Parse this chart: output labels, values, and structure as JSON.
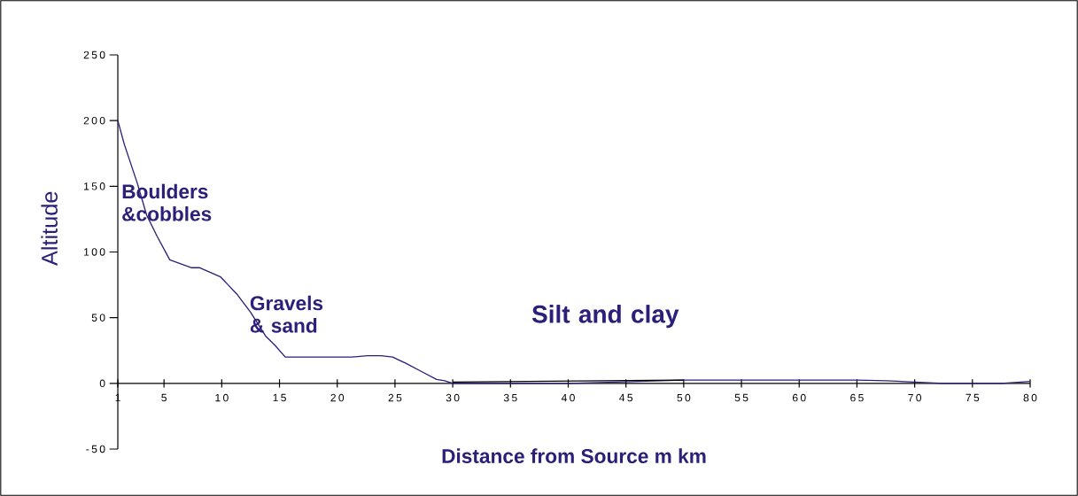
{
  "chart_data": {
    "type": "line",
    "xlabel": "Distance from Source m km",
    "ylabel": "Altitude",
    "xlim": [
      1,
      80
    ],
    "xticks": [
      1,
      5,
      10,
      15,
      20,
      25,
      30,
      35,
      40,
      45,
      50,
      55,
      60,
      65,
      70,
      75,
      80
    ],
    "ylim": [
      -50,
      250
    ],
    "yticks": [
      -50,
      0,
      50,
      100,
      150,
      200,
      250
    ],
    "series": [
      {
        "color": "#2b1f7a",
        "x": [
          1,
          1.56,
          2.7,
          3.5,
          4.4,
          5.5,
          7.4,
          8.1,
          9.9,
          11.3,
          12.5,
          13.8,
          14.6,
          15.5,
          16,
          20,
          21.3,
          22.6,
          23.8,
          24.8,
          25.4,
          25.9,
          27.3,
          28.6,
          29.3,
          30,
          35,
          40,
          50,
          65,
          67.5,
          70,
          72.5,
          77.5,
          80
        ],
        "values": [
          200,
          182,
          152,
          128,
          112,
          94,
          88,
          88,
          81,
          68,
          54,
          36,
          29,
          20,
          20,
          20,
          20,
          21,
          21,
          20,
          17.5,
          15.5,
          9,
          3,
          2,
          0,
          0,
          0,
          2.5,
          2.5,
          2,
          1,
          0,
          0,
          1.5
        ]
      },
      {
        "color": "#000000",
        "x": [
          30,
          50
        ],
        "values": [
          1,
          2.5
        ]
      }
    ],
    "annotations": [
      "Boulders &cobbles",
      "Gravels & sand",
      "Silt and clay"
    ],
    "marker": "none",
    "line_style": "solid",
    "grid": false
  }
}
